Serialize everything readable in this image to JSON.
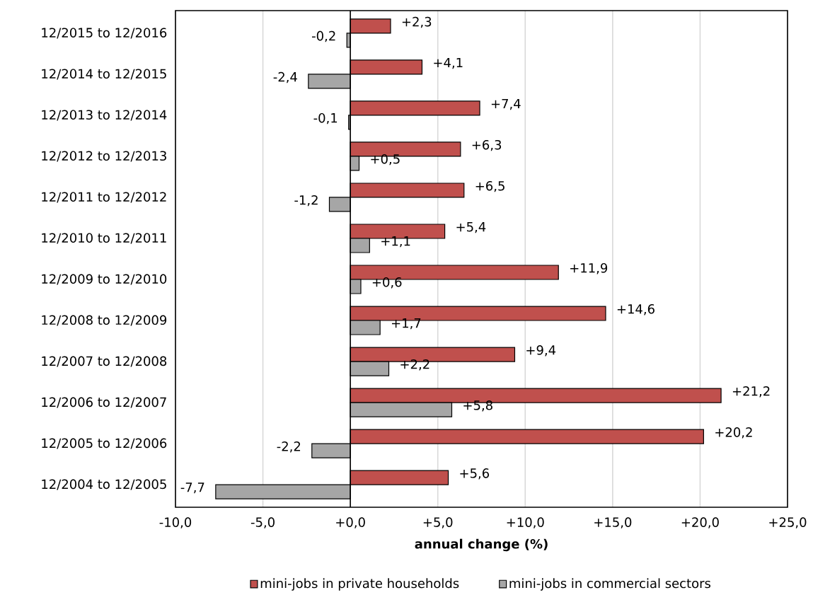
{
  "chart_data": {
    "type": "bar",
    "orientation": "horizontal",
    "xlabel": "annual change (%)",
    "categories": [
      "12/2015 to 12/2016",
      "12/2014 to 12/2015",
      "12/2013 to 12/2014",
      "12/2012 to 12/2013",
      "12/2011 to 12/2012",
      "12/2010 to 12/2011",
      "12/2009 to 12/2010",
      "12/2008 to 12/2009",
      "12/2007 to 12/2008",
      "12/2006 to 12/2007",
      "12/2005 to 12/2006",
      "12/2004 to 12/2005"
    ],
    "series": [
      {
        "name": "mini-jobs in private households",
        "color": "#c0504d",
        "values": [
          2.3,
          4.1,
          7.4,
          6.3,
          6.5,
          5.4,
          11.9,
          14.6,
          9.4,
          21.2,
          20.2,
          5.6
        ],
        "value_labels": [
          "+2,3",
          "+4,1",
          "+7,4",
          "+6,3",
          "+6,5",
          "+5,4",
          "+11,9",
          "+14,6",
          "+9,4",
          "+21,2",
          "+20,2",
          "+5,6"
        ]
      },
      {
        "name": "mini-jobs in commercial sectors",
        "color": "#a6a6a6",
        "values": [
          -0.2,
          -2.4,
          -0.1,
          0.5,
          -1.2,
          1.1,
          0.6,
          1.7,
          2.2,
          5.8,
          -2.2,
          -7.7
        ],
        "value_labels": [
          "-0,2",
          "-2,4",
          "-0,1",
          "+0,5",
          "-1,2",
          "+1,1",
          "+0,6",
          "+1,7",
          "+2,2",
          "+5,8",
          "-2,2",
          "-7,7"
        ]
      }
    ],
    "xlim": [
      -10,
      25
    ],
    "xticks": [
      {
        "value": -10,
        "label": "-10,0"
      },
      {
        "value": -5,
        "label": "-5,0"
      },
      {
        "value": 0,
        "label": "+0,0"
      },
      {
        "value": 5,
        "label": "+5,0"
      },
      {
        "value": 10,
        "label": "+10,0"
      },
      {
        "value": 15,
        "label": "+15,0"
      },
      {
        "value": 20,
        "label": "+20,0"
      },
      {
        "value": 25,
        "label": "+25,0"
      }
    ],
    "grid": "x",
    "legend": "bottom"
  }
}
